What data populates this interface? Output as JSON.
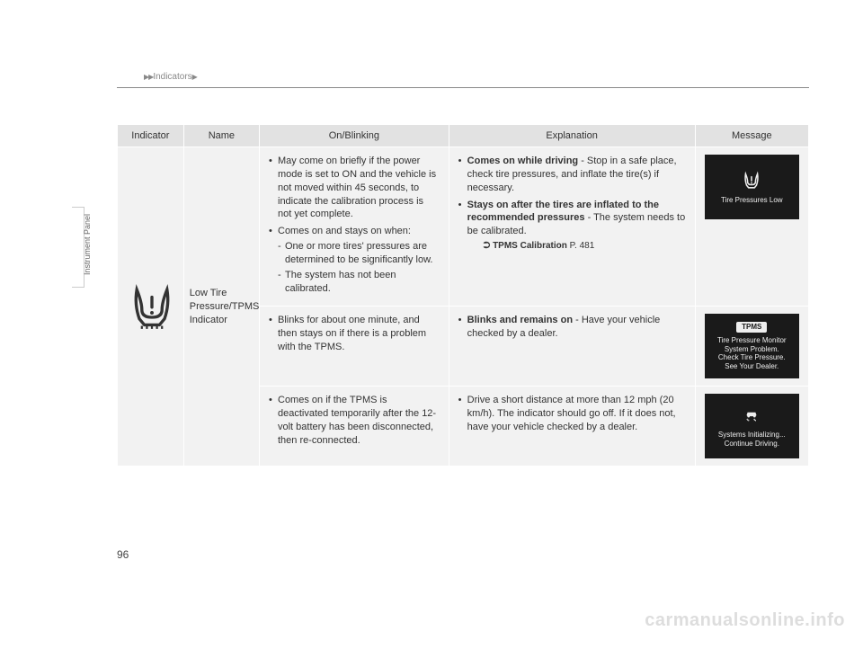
{
  "breadcrumb": {
    "section": "Indicators"
  },
  "sideLabel": "Instrument Panel",
  "pageNumber": "96",
  "watermark": "carmanualsonline.info",
  "columns": {
    "indicator": "Indicator",
    "name": "Name",
    "onblinking": "On/Blinking",
    "explanation": "Explanation",
    "message": "Message"
  },
  "colWidths": {
    "indicator": "70px",
    "name": "80px",
    "onblinking": "200px",
    "explanation": "260px",
    "message": "120px"
  },
  "colors": {
    "headerBg": "#e2e2e2",
    "cellBg": "#f2f2f2",
    "msgBg": "#1a1a1a",
    "msgText": "#eeeeee",
    "iconStroke": "#333333",
    "iconStrokeLight": "#eeeeee",
    "watermark": "#dddddd"
  },
  "row": {
    "name": "Low Tire Pressure/TPMS Indicator",
    "sub1": {
      "on1": "May come on briefly if the power mode is set to ON and the vehicle is not moved within 45 seconds, to indicate the calibration process is not yet complete.",
      "on2": "Comes on and stays on when:",
      "on2a": "One or more tires' pressures are determined to be significantly low.",
      "on2b": "The system has not been calibrated.",
      "exp1_bold": "Comes on while driving",
      "exp1_rest": " - Stop in a safe place, check tire pressures, and inflate the tire(s) if necessary.",
      "exp2_bold": "Stays on after the tires are inflated to the recommended pressures",
      "exp2_rest": " - The system needs to be calibrated.",
      "ref_label": "TPMS Calibration",
      "ref_page": "P. 481",
      "msg": "Tire Pressures Low"
    },
    "sub2": {
      "on": "Blinks for about one minute, and then stays on if there is a problem with the TPMS.",
      "exp_bold": "Blinks and remains on",
      "exp_rest": " - Have your vehicle checked by a dealer.",
      "msg_badge": "TPMS",
      "msg_lines": "Tire Pressure Monitor\nSystem Problem.\nCheck Tire Pressure.\nSee Your Dealer."
    },
    "sub3": {
      "on": "Comes on if the TPMS is deactivated temporarily after the 12-volt battery has been disconnected, then re-connected.",
      "exp": "Drive a short distance at more than 12 mph (20 km/h). The indicator should go off. If it does not, have your vehicle checked by a dealer.",
      "msg_lines": "Systems Initializing...\nContinue Driving."
    }
  }
}
